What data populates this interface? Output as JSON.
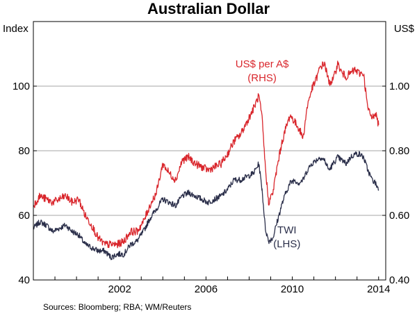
{
  "chart_data": {
    "type": "line",
    "title": "Australian Dollar",
    "left_axis": {
      "unit": "Index",
      "ylim": [
        40,
        120
      ],
      "ticks": [
        40,
        60,
        80,
        100
      ],
      "tick_labels": [
        "40",
        "60",
        "80",
        "100"
      ]
    },
    "right_axis": {
      "unit": "US$",
      "ylim": [
        0.4,
        1.2
      ],
      "ticks": [
        0.4,
        0.6,
        0.8,
        1.0
      ],
      "tick_labels": [
        "0.40",
        "0.60",
        "0.80",
        "1.00"
      ]
    },
    "x_axis": {
      "xlim": [
        1998.0,
        2014.33
      ],
      "ticks": [
        2002,
        2006,
        2010,
        2014
      ],
      "tick_labels": [
        "2002",
        "2006",
        "2010",
        "2014"
      ]
    },
    "grid": "horizontal",
    "series": [
      {
        "name": "US$ per A$",
        "axis_label": "(RHS)",
        "axis": "right",
        "color": "#d9262c",
        "x": [
          1998.0,
          1998.3,
          1998.6,
          1998.9,
          1999.2,
          1999.5,
          1999.8,
          2000.1,
          2000.4,
          2000.7,
          2001.0,
          2001.3,
          2001.6,
          2001.9,
          2002.2,
          2002.5,
          2002.8,
          2003.1,
          2003.4,
          2003.7,
          2004.0,
          2004.3,
          2004.6,
          2004.9,
          2005.2,
          2005.5,
          2005.8,
          2006.1,
          2006.4,
          2006.7,
          2007.0,
          2007.3,
          2007.6,
          2007.9,
          2008.2,
          2008.45,
          2008.6,
          2008.75,
          2008.9,
          2009.1,
          2009.3,
          2009.5,
          2009.7,
          2009.9,
          2010.1,
          2010.3,
          2010.5,
          2010.7,
          2010.9,
          2011.1,
          2011.3,
          2011.5,
          2011.7,
          2011.9,
          2012.1,
          2012.3,
          2012.5,
          2012.7,
          2012.9,
          2013.1,
          2013.3,
          2013.5,
          2013.7,
          2013.85,
          2014.0
        ],
        "values": [
          0.63,
          0.66,
          0.65,
          0.64,
          0.65,
          0.66,
          0.64,
          0.65,
          0.6,
          0.57,
          0.53,
          0.51,
          0.51,
          0.51,
          0.52,
          0.55,
          0.55,
          0.58,
          0.63,
          0.67,
          0.76,
          0.73,
          0.71,
          0.77,
          0.78,
          0.76,
          0.75,
          0.74,
          0.75,
          0.76,
          0.79,
          0.83,
          0.85,
          0.89,
          0.93,
          0.97,
          0.9,
          0.75,
          0.64,
          0.67,
          0.75,
          0.82,
          0.87,
          0.91,
          0.89,
          0.87,
          0.84,
          0.94,
          0.99,
          1.02,
          1.06,
          1.07,
          1.01,
          1.02,
          1.07,
          1.04,
          1.03,
          1.04,
          1.05,
          1.04,
          1.04,
          0.93,
          0.9,
          0.92,
          0.88
        ]
      },
      {
        "name": "TWI",
        "axis_label": "(LHS)",
        "axis": "left",
        "color": "#2b2f4a",
        "x": [
          1998.0,
          1998.3,
          1998.6,
          1998.9,
          1999.2,
          1999.5,
          1999.8,
          2000.1,
          2000.4,
          2000.7,
          2001.0,
          2001.3,
          2001.6,
          2001.9,
          2002.2,
          2002.5,
          2002.8,
          2003.1,
          2003.4,
          2003.7,
          2004.0,
          2004.3,
          2004.6,
          2004.9,
          2005.2,
          2005.5,
          2005.8,
          2006.1,
          2006.4,
          2006.7,
          2007.0,
          2007.3,
          2007.6,
          2007.9,
          2008.2,
          2008.45,
          2008.6,
          2008.75,
          2008.9,
          2009.1,
          2009.3,
          2009.5,
          2009.7,
          2009.9,
          2010.1,
          2010.3,
          2010.5,
          2010.7,
          2010.9,
          2011.1,
          2011.3,
          2011.5,
          2011.7,
          2011.9,
          2012.1,
          2012.3,
          2012.5,
          2012.7,
          2012.9,
          2013.1,
          2013.3,
          2013.5,
          2013.7,
          2013.85,
          2014.0
        ],
        "values": [
          56,
          58,
          57,
          55,
          56,
          57,
          55,
          54,
          51,
          50,
          49,
          49,
          47,
          48,
          48,
          51,
          52,
          55,
          59,
          62,
          65,
          64,
          63,
          66,
          67,
          66,
          65,
          64,
          65,
          66,
          68,
          71,
          71,
          72,
          73,
          76,
          68,
          56,
          52,
          53,
          58,
          63,
          67,
          70,
          71,
          70,
          71,
          74,
          76,
          77,
          78,
          77,
          74,
          76,
          78,
          77,
          76,
          78,
          79,
          79,
          78,
          74,
          71,
          70,
          68
        ]
      }
    ],
    "source_note": "Sources: Bloomberg; RBA; WM/Reuters"
  }
}
